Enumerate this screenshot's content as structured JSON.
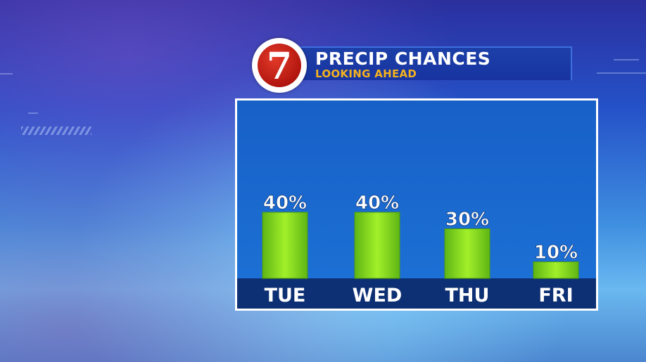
{
  "header": {
    "logo_text": "7",
    "title": "PRECIP CHANCES",
    "subtitle": "LOOKING AHEAD"
  },
  "colors": {
    "title": "#ffffff",
    "subtitle": "#f5b21e",
    "bar": "#86e01c",
    "axis_band": "#0d2f73",
    "plot_bg": "#1b6ad0"
  },
  "chart_data": {
    "type": "bar",
    "categories": [
      "TUE",
      "WED",
      "THU",
      "FRI"
    ],
    "values": [
      40,
      40,
      30,
      10
    ],
    "data_labels": [
      "40%",
      "40%",
      "30%",
      "10%"
    ],
    "ylim": [
      0,
      100
    ],
    "grid": false,
    "legend": "none"
  }
}
